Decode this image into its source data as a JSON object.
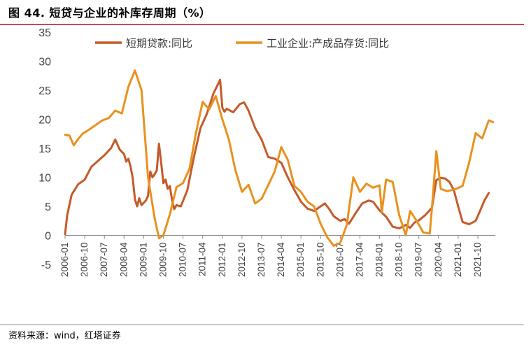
{
  "header": {
    "title": "图 44. 短贷与企业的补库存周期（%）"
  },
  "footer": {
    "source": "资料来源：wind，红塔证券"
  },
  "chart_data": {
    "type": "line",
    "title": "图 44. 短贷与企业的补库存周期（%）",
    "ylim": [
      -5,
      35
    ],
    "yticks": [
      -5,
      0,
      5,
      10,
      15,
      20,
      25,
      30,
      35
    ],
    "x_range": [
      "2006-01",
      "2022-06"
    ],
    "xtick_labels": [
      "2006-01",
      "2006-10",
      "2007-07",
      "2008-04",
      "2009-01",
      "2009-10",
      "2010-07",
      "2011-04",
      "2012-01",
      "2012-10",
      "2013-07",
      "2014-04",
      "2015-01",
      "2015-10",
      "2016-07",
      "2017-04",
      "2018-01",
      "2018-10",
      "2019-07",
      "2020-04",
      "2021-01",
      "2021-10"
    ],
    "series": [
      {
        "name": "短期贷款:同比",
        "color": "#C55A2A",
        "points": [
          [
            "2006-01",
            0.2
          ],
          [
            "2006-02",
            3.5
          ],
          [
            "2006-04",
            7.0
          ],
          [
            "2006-07",
            8.8
          ],
          [
            "2006-10",
            9.6
          ],
          [
            "2007-01",
            11.8
          ],
          [
            "2007-04",
            12.8
          ],
          [
            "2007-07",
            13.8
          ],
          [
            "2007-10",
            15.0
          ],
          [
            "2007-12",
            16.5
          ],
          [
            "2008-02",
            14.8
          ],
          [
            "2008-04",
            14.0
          ],
          [
            "2008-05",
            12.7
          ],
          [
            "2008-06",
            13.2
          ],
          [
            "2008-07",
            11.8
          ],
          [
            "2008-08",
            9.8
          ],
          [
            "2008-09",
            6.2
          ],
          [
            "2008-10",
            5.0
          ],
          [
            "2008-11",
            6.4
          ],
          [
            "2008-12",
            5.2
          ],
          [
            "2009-02",
            6.0
          ],
          [
            "2009-03",
            6.8
          ],
          [
            "2009-04",
            11.0
          ],
          [
            "2009-05",
            10.0
          ],
          [
            "2009-06",
            10.5
          ],
          [
            "2009-07",
            11.2
          ],
          [
            "2009-08",
            15.8
          ],
          [
            "2009-09",
            12.5
          ],
          [
            "2009-10",
            9.0
          ],
          [
            "2009-11",
            9.6
          ],
          [
            "2009-12",
            8.0
          ],
          [
            "2010-01",
            8.5
          ],
          [
            "2010-02",
            6.0
          ],
          [
            "2010-03",
            4.5
          ],
          [
            "2010-04",
            5.2
          ],
          [
            "2010-06",
            5.0
          ],
          [
            "2010-09",
            7.8
          ],
          [
            "2010-12",
            13.5
          ],
          [
            "2011-03",
            18.5
          ],
          [
            "2011-06",
            21.0
          ],
          [
            "2011-09",
            24.5
          ],
          [
            "2011-11",
            26.0
          ],
          [
            "2011-12",
            26.8
          ],
          [
            "2012-01",
            22.0
          ],
          [
            "2012-02",
            21.3
          ],
          [
            "2012-03",
            21.8
          ],
          [
            "2012-06",
            21.2
          ],
          [
            "2012-09",
            22.6
          ],
          [
            "2012-11",
            22.9
          ],
          [
            "2013-01",
            21.5
          ],
          [
            "2013-04",
            18.5
          ],
          [
            "2013-07",
            16.5
          ],
          [
            "2013-10",
            13.5
          ],
          [
            "2014-01",
            13.2
          ],
          [
            "2014-04",
            12.5
          ],
          [
            "2014-07",
            10.0
          ],
          [
            "2014-10",
            7.8
          ],
          [
            "2015-01",
            5.8
          ],
          [
            "2015-04",
            4.6
          ],
          [
            "2015-07",
            4.2
          ],
          [
            "2015-10",
            5.0
          ],
          [
            "2015-12",
            5.5
          ],
          [
            "2016-02",
            4.5
          ],
          [
            "2016-04",
            3.3
          ],
          [
            "2016-07",
            2.5
          ],
          [
            "2016-09",
            2.8
          ],
          [
            "2016-11",
            2.0
          ],
          [
            "2017-02",
            3.8
          ],
          [
            "2017-05",
            5.5
          ],
          [
            "2017-08",
            6.0
          ],
          [
            "2017-10",
            5.8
          ],
          [
            "2018-01",
            4.3
          ],
          [
            "2018-04",
            3.2
          ],
          [
            "2018-07",
            1.5
          ],
          [
            "2018-10",
            1.2
          ],
          [
            "2019-01",
            1.8
          ],
          [
            "2019-03",
            1.3
          ],
          [
            "2019-05",
            2.2
          ],
          [
            "2019-07",
            2.6
          ],
          [
            "2019-10",
            3.5
          ],
          [
            "2020-01",
            4.8
          ],
          [
            "2020-03",
            9.5
          ],
          [
            "2020-05",
            9.9
          ],
          [
            "2020-07",
            9.8
          ],
          [
            "2020-09",
            9.2
          ],
          [
            "2020-11",
            7.8
          ],
          [
            "2021-01",
            5.0
          ],
          [
            "2021-03",
            2.3
          ],
          [
            "2021-06",
            1.9
          ],
          [
            "2021-09",
            2.5
          ],
          [
            "2021-11",
            4.2
          ],
          [
            "2022-01",
            6.0
          ],
          [
            "2022-03",
            7.3
          ]
        ]
      },
      {
        "name": "工业企业:产成品存货:同比",
        "color": "#E8921E",
        "points": [
          [
            "2006-01",
            17.3
          ],
          [
            "2006-03",
            17.2
          ],
          [
            "2006-05",
            15.5
          ],
          [
            "2006-07",
            16.6
          ],
          [
            "2006-09",
            17.5
          ],
          [
            "2006-12",
            18.2
          ],
          [
            "2007-03",
            19.0
          ],
          [
            "2007-06",
            19.8
          ],
          [
            "2007-09",
            20.2
          ],
          [
            "2007-12",
            21.5
          ],
          [
            "2008-03",
            21.0
          ],
          [
            "2008-06",
            25.6
          ],
          [
            "2008-09",
            28.4
          ],
          [
            "2008-12",
            25.0
          ],
          [
            "2009-03",
            10.0
          ],
          [
            "2009-06",
            3.0
          ],
          [
            "2009-08",
            -0.5
          ],
          [
            "2009-10",
            0.0
          ],
          [
            "2010-01",
            3.6
          ],
          [
            "2010-04",
            8.3
          ],
          [
            "2010-07",
            9.0
          ],
          [
            "2010-10",
            11.5
          ],
          [
            "2011-01",
            17.8
          ],
          [
            "2011-04",
            23.0
          ],
          [
            "2011-07",
            21.7
          ],
          [
            "2011-10",
            24.0
          ],
          [
            "2012-01",
            20.0
          ],
          [
            "2012-04",
            16.5
          ],
          [
            "2012-07",
            11.2
          ],
          [
            "2012-10",
            7.5
          ],
          [
            "2013-01",
            8.7
          ],
          [
            "2013-04",
            5.5
          ],
          [
            "2013-07",
            6.3
          ],
          [
            "2014-01",
            11.0
          ],
          [
            "2014-04",
            15.2
          ],
          [
            "2014-07",
            13.0
          ],
          [
            "2014-10",
            8.5
          ],
          [
            "2015-01",
            7.5
          ],
          [
            "2015-04",
            5.8
          ],
          [
            "2015-07",
            5.0
          ],
          [
            "2015-10",
            2.0
          ],
          [
            "2016-01",
            -0.3
          ],
          [
            "2016-04",
            -1.8
          ],
          [
            "2016-07",
            -1.3
          ],
          [
            "2016-10",
            1.8
          ],
          [
            "2017-01",
            10.0
          ],
          [
            "2017-04",
            7.5
          ],
          [
            "2017-07",
            8.9
          ],
          [
            "2017-10",
            8.2
          ],
          [
            "2018-01",
            8.6
          ],
          [
            "2018-02",
            4.0
          ],
          [
            "2018-04",
            9.6
          ],
          [
            "2018-07",
            9.2
          ],
          [
            "2018-10",
            3.5
          ],
          [
            "2019-01",
            0.0
          ],
          [
            "2019-03",
            4.2
          ],
          [
            "2019-06",
            2.5
          ],
          [
            "2019-09",
            0.5
          ],
          [
            "2019-12",
            0.3
          ],
          [
            "2020-01",
            4.8
          ],
          [
            "2020-03",
            14.5
          ],
          [
            "2020-05",
            8.0
          ],
          [
            "2020-08",
            7.6
          ],
          [
            "2020-12",
            8.0
          ],
          [
            "2021-03",
            8.5
          ],
          [
            "2021-06",
            12.5
          ],
          [
            "2021-09",
            17.6
          ],
          [
            "2021-12",
            16.7
          ],
          [
            "2022-03",
            19.8
          ],
          [
            "2022-05",
            19.5
          ]
        ]
      }
    ],
    "legend": {
      "position": "top"
    }
  }
}
